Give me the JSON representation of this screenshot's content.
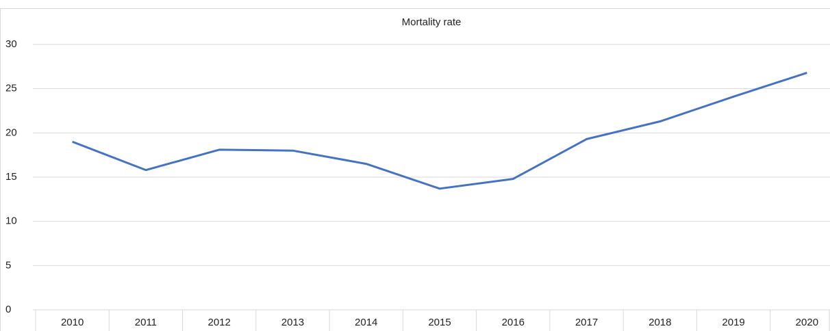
{
  "chart_data": {
    "type": "line",
    "title": "Mortality rate",
    "categories": [
      "2010",
      "2011",
      "2012",
      "2013",
      "2014",
      "2015",
      "2016",
      "2017",
      "2018",
      "2019",
      "2020"
    ],
    "values": [
      19.0,
      15.8,
      18.1,
      18.0,
      16.5,
      13.7,
      14.8,
      19.3,
      21.3,
      24.1,
      26.8
    ],
    "color": "#4472c4",
    "ylim": [
      0,
      30
    ],
    "yticks": [
      0,
      5,
      10,
      15,
      20,
      25,
      30
    ],
    "grid": true
  }
}
